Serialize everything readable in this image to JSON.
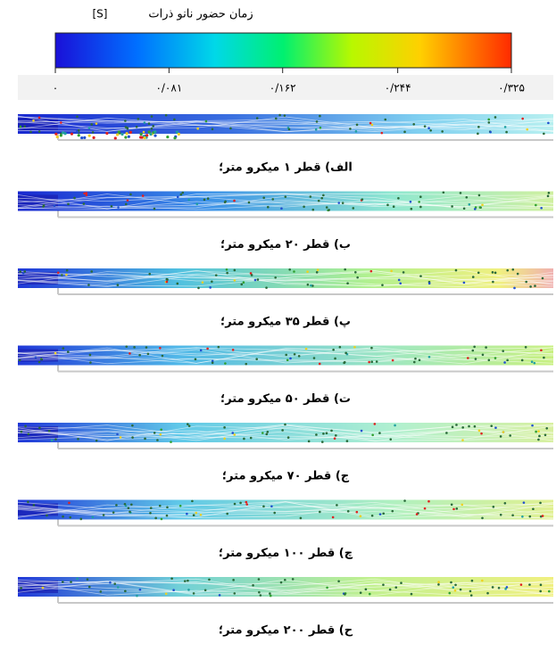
{
  "colorbar": {
    "title": "زمان حضور نانو ذرات",
    "unit": "[S]",
    "range": [
      0,
      0.325
    ],
    "ticks": [
      {
        "value": 0,
        "label": "۰"
      },
      {
        "value": 0.081,
        "label": "۰/۰۸۱"
      },
      {
        "value": 0.162,
        "label": "۰/۱۶۲"
      },
      {
        "value": 0.244,
        "label": "۰/۲۴۴"
      },
      {
        "value": 0.325,
        "label": "۰/۳۲۵"
      }
    ]
  },
  "panels": [
    {
      "caption": "الف) قطر ۱ میکرو متر؛"
    },
    {
      "caption": "ب) قطر ۲۰ میکرو متر؛"
    },
    {
      "caption": "پ) قطر ۳۵ میکرو متر؛"
    },
    {
      "caption": "ت) قطر ۵۰ میکرو متر؛"
    },
    {
      "caption": "ج) قطر ۷۰ میکرو متر؛"
    },
    {
      "caption": "چ) قطر ۱۰۰ میکرو متر؛"
    },
    {
      "caption": "ح) قطر ۲۰۰ میکرو متر؛"
    }
  ]
}
